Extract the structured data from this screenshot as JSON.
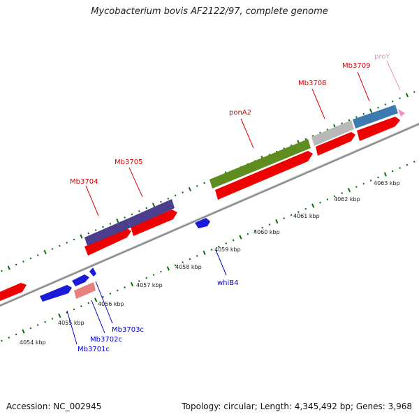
{
  "title": "Mycobacterium bovis AF2122/97, complete genome",
  "footer": {
    "accession_label": "Accession:",
    "accession": "NC_002945",
    "topology_label": "Topology:",
    "topology": "circular",
    "length_label": "Length:",
    "length": "4,345,492 bp",
    "genes_label": "Genes:",
    "genes": "3,968"
  },
  "kbp_ticks": [
    "4054 kbp",
    "4055 kbp",
    "4056 kbp",
    "4057 kbp",
    "4058 kbp",
    "4059 kbp",
    "4060 kbp",
    "4061 kbp",
    "4062 kbp",
    "4063 kbp"
  ],
  "colors": {
    "backbone": "#8c8c8c",
    "forward_label": "#dd0000",
    "reverse_label": "#0000cc",
    "tick": "#0a6e0a"
  },
  "forward_features": [
    {
      "name": "Mb3704",
      "color": "#4b3e8c"
    },
    {
      "name": "Mb3705",
      "color": "#4b3e8c"
    },
    {
      "name": "ponA2",
      "color": "#5f8c1f"
    },
    {
      "name": "Mb3708",
      "color": "#b9b9b9"
    },
    {
      "name": "Mb3709",
      "color": "#3d7ab0"
    },
    {
      "name": "proY",
      "color": "#f090c0"
    }
  ],
  "reverse_features": [
    {
      "name": "Mb3701c",
      "color": "#1a1ad9"
    },
    {
      "name": "Mb3702c",
      "color": "#1a1ad9"
    },
    {
      "name": "Mb3703c",
      "color": "#1a1ad9"
    },
    {
      "name": "whiB4",
      "color": "#1a1ad9"
    }
  ]
}
